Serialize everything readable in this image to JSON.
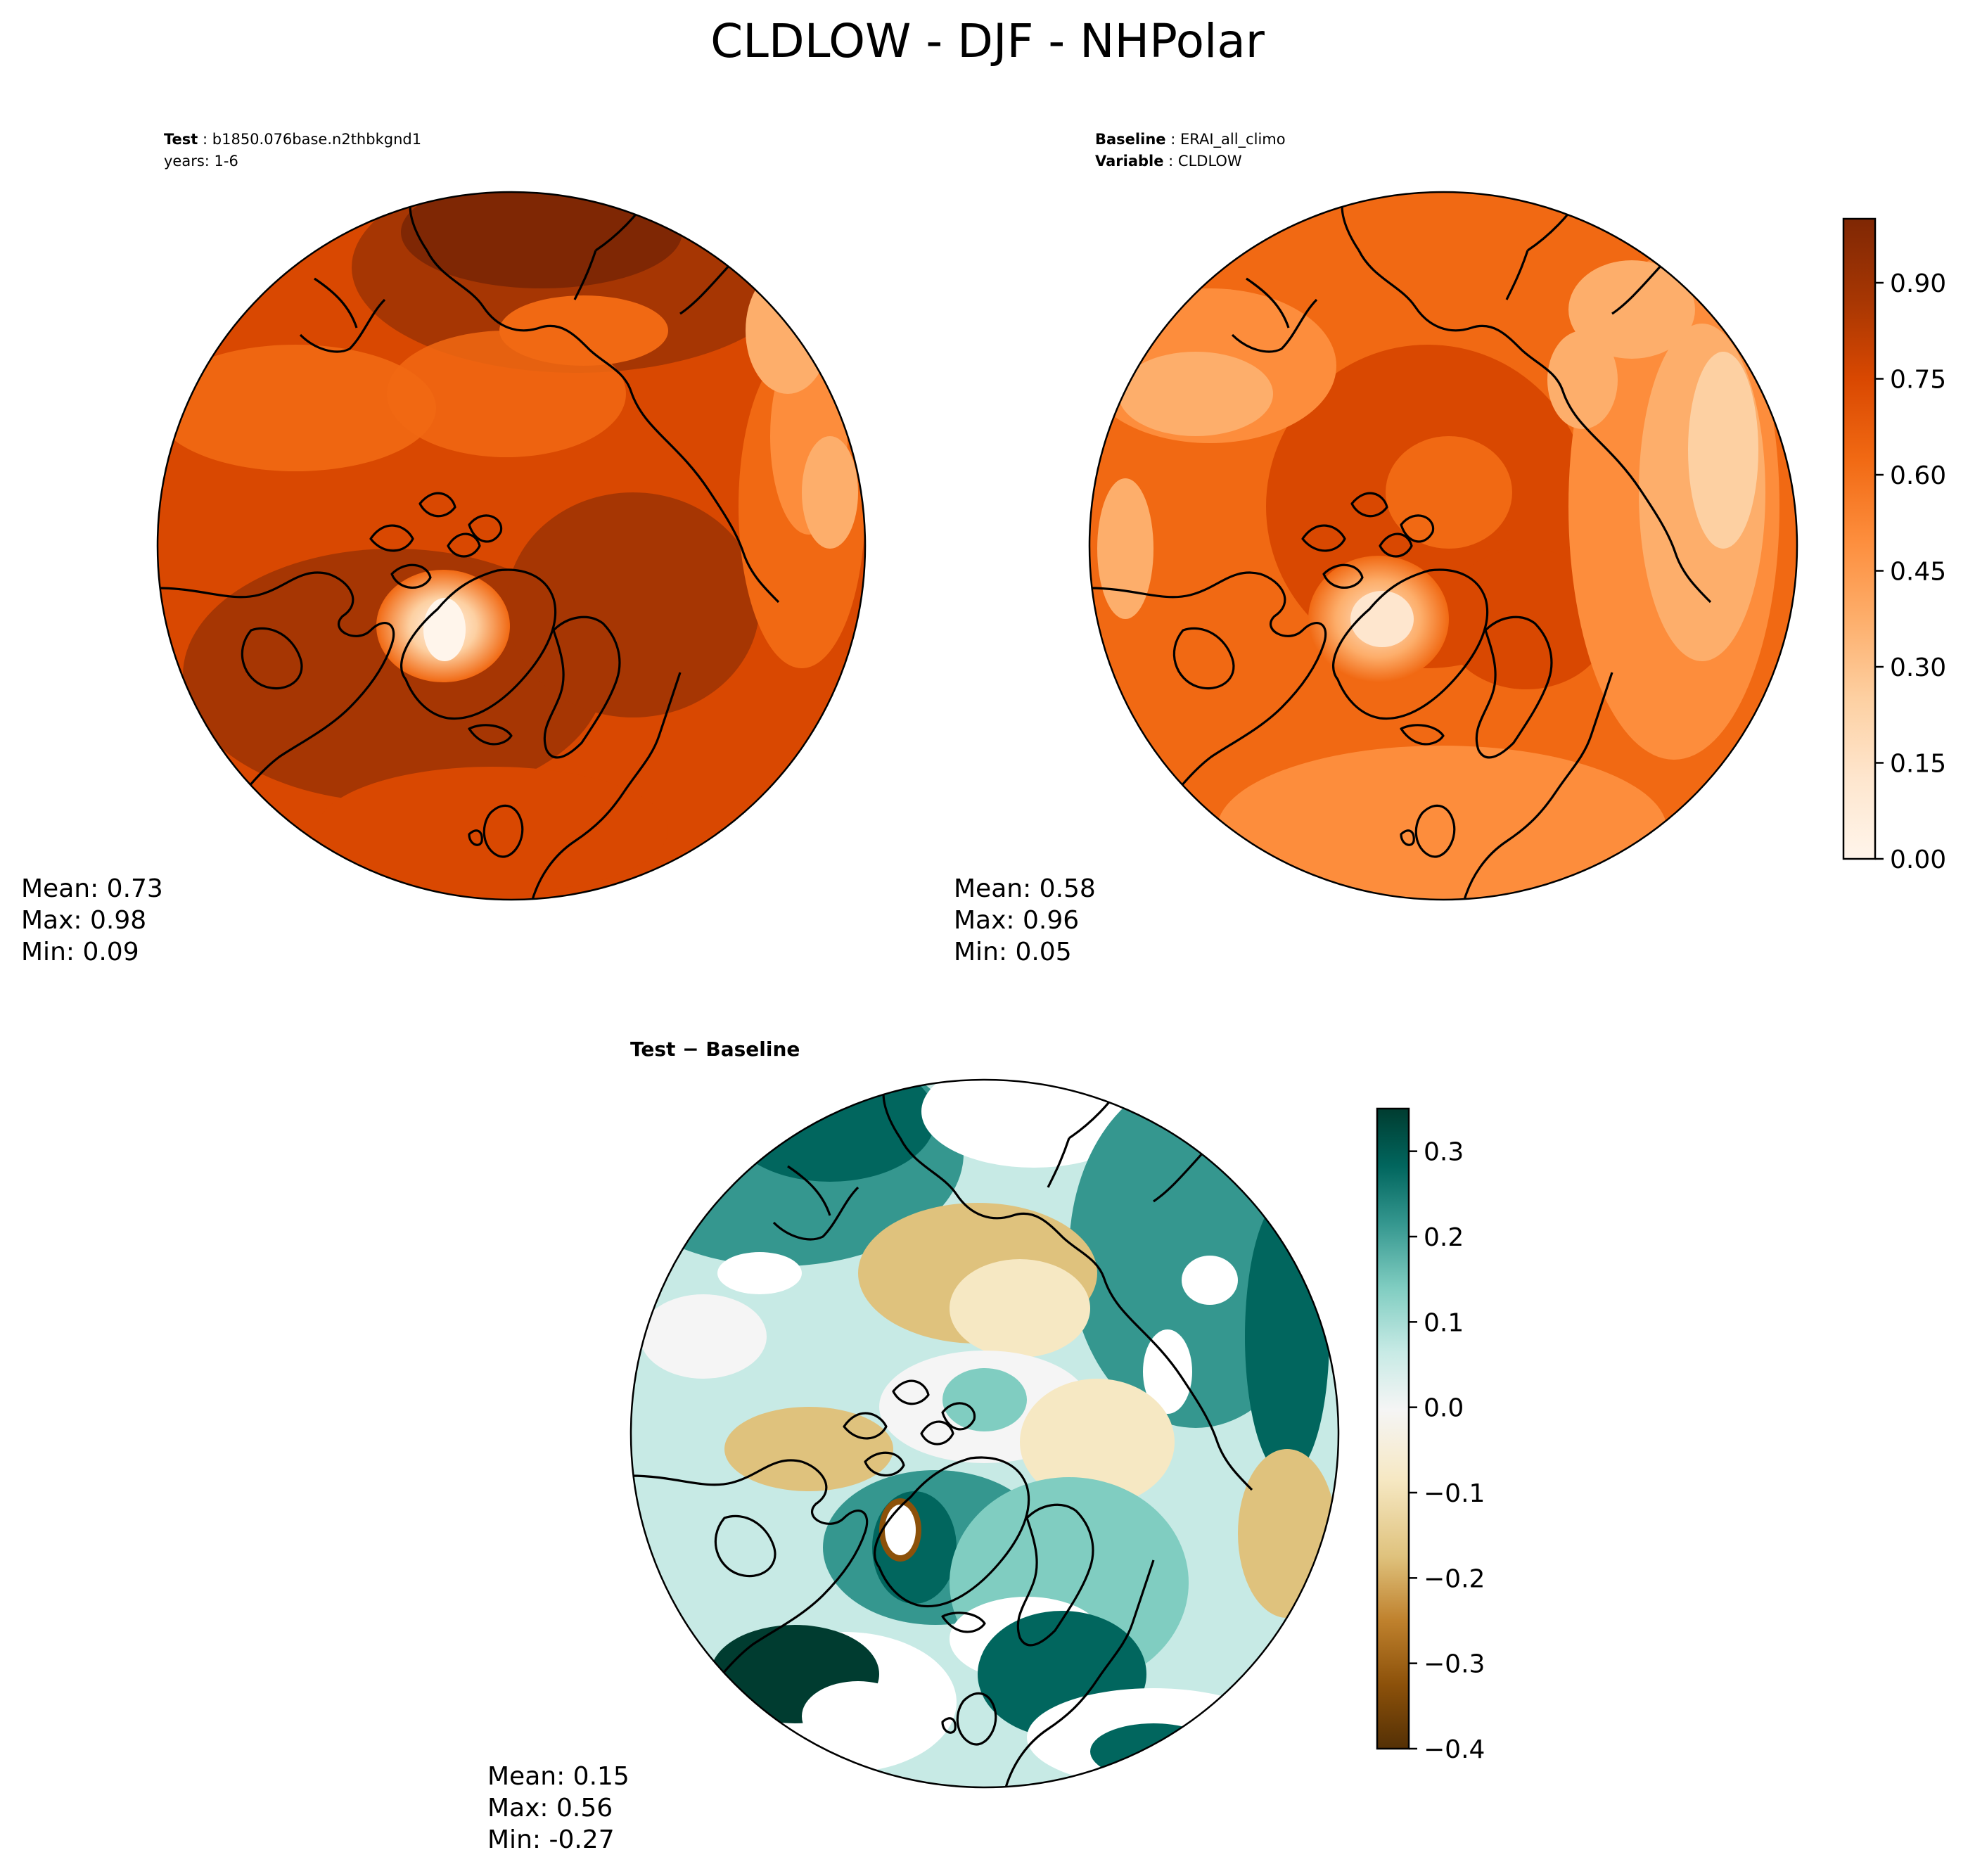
{
  "title": "CLDLOW - DJF - NHPolar",
  "panels": {
    "test": {
      "label_key": "Test",
      "label_value": "b1850.076base.n2thbkgnd1",
      "line2": "years: 1-6",
      "stats": [
        "Mean:  0.73",
        "Max:  0.98",
        "Min:  0.09"
      ]
    },
    "baseline": {
      "label_key": "Baseline",
      "label_value": "ERAI_all_climo",
      "line2_key": "Variable",
      "line2_value": "CLDLOW",
      "stats": [
        "Mean:  0.58",
        "Max:  0.96",
        "Min:  0.05"
      ]
    },
    "diff": {
      "label": "Test − Baseline",
      "stats": [
        "Mean:  0.15",
        "Max:  0.56",
        "Min: -0.27"
      ]
    }
  },
  "colorbar_main": {
    "colormap": "Oranges",
    "range": [
      0.0,
      1.0
    ],
    "ticks": [
      {
        "value": 0.0,
        "label": "0.00"
      },
      {
        "value": 0.15,
        "label": "0.15"
      },
      {
        "value": 0.3,
        "label": "0.30"
      },
      {
        "value": 0.45,
        "label": "0.45"
      },
      {
        "value": 0.6,
        "label": "0.60"
      },
      {
        "value": 0.75,
        "label": "0.75"
      },
      {
        "value": 0.9,
        "label": "0.90"
      }
    ],
    "colors": [
      "#fff5eb",
      "#fee6ce",
      "#fdd0a2",
      "#fdae6b",
      "#fd8d3c",
      "#f16913",
      "#d94801",
      "#a63603",
      "#7f2704"
    ]
  },
  "colorbar_diff": {
    "colormap": "BrBG",
    "range": [
      -0.4,
      0.35
    ],
    "ticks": [
      {
        "value": -0.4,
        "label": "−0.4"
      },
      {
        "value": -0.3,
        "label": "−0.3"
      },
      {
        "value": -0.2,
        "label": "−0.2"
      },
      {
        "value": -0.1,
        "label": "−0.1"
      },
      {
        "value": 0.0,
        "label": "0.0"
      },
      {
        "value": 0.1,
        "label": "0.1"
      },
      {
        "value": 0.2,
        "label": "0.2"
      },
      {
        "value": 0.3,
        "label": "0.3"
      }
    ],
    "colors": [
      "#543005",
      "#8c510a",
      "#bf812d",
      "#dfc27d",
      "#f6e8c3",
      "#f5f5f5",
      "#c7eae5",
      "#80cdc1",
      "#35978f",
      "#01665e",
      "#003c30"
    ]
  },
  "map_colors": {
    "test": {
      "base": "#d94801",
      "dark": "#a63603",
      "darker": "#7f2704",
      "light": "#f16913",
      "pale": "#fdae6b",
      "ice": "#fff5eb"
    },
    "baseline": {
      "base": "#f16913",
      "dark": "#d94801",
      "light": "#fd8d3c",
      "pale": "#fdae6b",
      "paler": "#fdd0a2",
      "ice": "#fee6ce"
    },
    "diff": {
      "base": "#c7eae5",
      "mid": "#80cdc1",
      "strong": "#35978f",
      "dark": "#01665e",
      "darkest": "#003c30",
      "tan": "#dfc27d",
      "beige": "#f6e8c3",
      "white": "#ffffff",
      "brown": "#8c510a"
    }
  }
}
